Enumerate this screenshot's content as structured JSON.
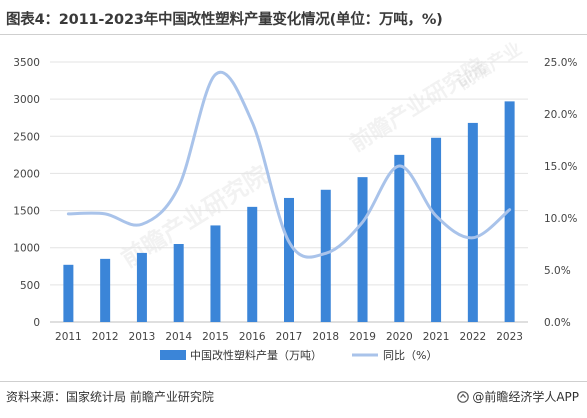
{
  "title": "图表4：2011-2023年中国改性塑料产量变化情况(单位：万吨，%)",
  "source": "资料来源：国家统计局 前瞻产业研究院",
  "brand": "@前瞻经济学人APP",
  "watermarks": [
    "前瞻产业",
    "前瞻产业研究院",
    "前瞻产业研究院"
  ],
  "chart_data": {
    "type": "bar",
    "categories": [
      "2011",
      "2012",
      "2013",
      "2014",
      "2015",
      "2016",
      "2017",
      "2018",
      "2019",
      "2020",
      "2021",
      "2022",
      "2023"
    ],
    "series": [
      {
        "name": "中国改性塑料产量（万吨）",
        "type": "bar",
        "axis": "left",
        "color": "#3b85d8",
        "values": [
          770,
          850,
          930,
          1050,
          1300,
          1550,
          1670,
          1780,
          1950,
          2250,
          2480,
          2680,
          2970
        ]
      },
      {
        "name": "同比（%）",
        "type": "line",
        "axis": "right",
        "color": "#a9c3ea",
        "values": [
          10.4,
          10.4,
          9.4,
          13.0,
          23.8,
          19.2,
          7.7,
          6.6,
          9.6,
          15.0,
          10.2,
          8.1,
          10.8
        ]
      }
    ],
    "y_left": {
      "min": 0,
      "max": 3500,
      "ticks": [
        "0",
        "500",
        "1000",
        "1500",
        "2000",
        "2500",
        "3000",
        "3500"
      ]
    },
    "y_right": {
      "min": 0,
      "max": 25,
      "ticks": [
        "0.0%",
        "5.0%",
        "10.0%",
        "15.0%",
        "20.0%",
        "25.0%"
      ]
    },
    "grid": true,
    "legend_position": "bottom"
  }
}
